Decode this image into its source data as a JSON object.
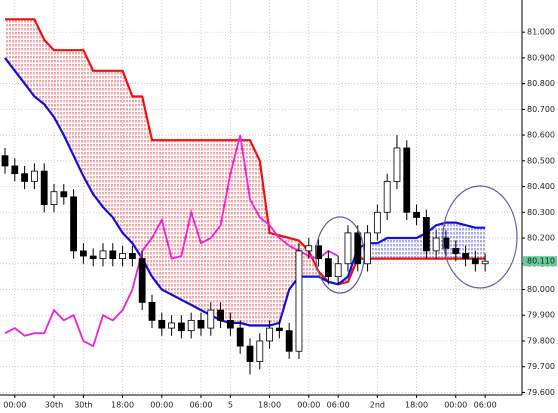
{
  "chart_data": {
    "type": "candlestick",
    "x": [
      0,
      1,
      2,
      3,
      4,
      5,
      6,
      7,
      8,
      9,
      10,
      11,
      12,
      13,
      14,
      15,
      16,
      17,
      18,
      19,
      20,
      21,
      22,
      23,
      24,
      25,
      26,
      27,
      28,
      29,
      30,
      31,
      32,
      33,
      34,
      35,
      36,
      37,
      38,
      39,
      40,
      41,
      42,
      43,
      44,
      45,
      46,
      47,
      48,
      49
    ],
    "open": [
      80.52,
      80.48,
      80.45,
      80.42,
      80.46,
      80.33,
      80.38,
      80.36,
      80.15,
      80.13,
      80.12,
      80.15,
      80.12,
      80.14,
      80.12,
      79.95,
      79.88,
      79.85,
      79.87,
      79.84,
      79.88,
      79.85,
      79.92,
      79.88,
      79.85,
      79.78,
      79.72,
      79.8,
      79.85,
      79.84,
      79.76,
      80.15,
      80.17,
      80.12,
      80.05,
      80.1,
      80.22,
      80.1,
      80.22,
      80.3,
      80.42,
      80.55,
      80.3,
      80.28,
      80.15,
      80.2,
      80.16,
      80.14,
      80.12,
      80.1
    ],
    "high": [
      80.55,
      80.51,
      80.48,
      80.49,
      80.49,
      80.41,
      80.41,
      80.39,
      80.18,
      80.16,
      80.18,
      80.18,
      80.17,
      80.17,
      80.15,
      79.98,
      79.91,
      79.9,
      79.9,
      79.91,
      79.91,
      79.95,
      79.95,
      79.91,
      79.88,
      79.81,
      79.83,
      79.88,
      79.88,
      79.87,
      80.18,
      80.2,
      80.2,
      80.15,
      80.13,
      80.25,
      80.25,
      80.25,
      80.33,
      80.45,
      80.6,
      80.58,
      80.33,
      80.31,
      80.23,
      80.23,
      80.19,
      80.17,
      80.15,
      80.14
    ],
    "low": [
      80.45,
      80.42,
      80.39,
      80.39,
      80.3,
      80.3,
      80.33,
      80.12,
      80.1,
      80.09,
      80.09,
      80.09,
      80.09,
      80.09,
      79.92,
      79.85,
      79.82,
      79.82,
      79.81,
      79.81,
      79.82,
      79.82,
      79.85,
      79.82,
      79.75,
      79.67,
      79.69,
      79.77,
      79.81,
      79.73,
      79.73,
      80.12,
      80.09,
      80.02,
      80.02,
      80.07,
      80.07,
      80.07,
      80.19,
      80.27,
      80.39,
      80.27,
      80.25,
      80.12,
      80.12,
      80.13,
      80.11,
      80.09,
      80.07,
      80.07
    ],
    "close": [
      80.48,
      80.45,
      80.42,
      80.46,
      80.33,
      80.38,
      80.36,
      80.15,
      80.13,
      80.12,
      80.15,
      80.12,
      80.14,
      80.12,
      79.95,
      79.88,
      79.85,
      79.87,
      79.84,
      79.88,
      79.85,
      79.92,
      79.88,
      79.85,
      79.78,
      79.72,
      79.8,
      79.85,
      79.84,
      79.76,
      80.15,
      80.17,
      80.12,
      80.05,
      80.1,
      80.22,
      80.1,
      80.22,
      80.3,
      80.42,
      80.55,
      80.3,
      80.28,
      80.15,
      80.2,
      80.16,
      80.14,
      80.12,
      80.1,
      80.11
    ],
    "up_color": "#ffffff",
    "down_color": "#000000",
    "series": [
      {
        "color": "#ee1111",
        "values": [
          81.05,
          81.05,
          81.05,
          81.05,
          80.97,
          80.93,
          80.93,
          80.93,
          80.93,
          80.85,
          80.85,
          80.85,
          80.85,
          80.75,
          80.75,
          80.58,
          80.58,
          80.58,
          80.58,
          80.58,
          80.58,
          80.58,
          80.58,
          80.58,
          80.58,
          80.58,
          80.5,
          80.22,
          80.21,
          80.2,
          80.19,
          80.15,
          80.07,
          80.03,
          80.02,
          80.03,
          80.12,
          80.12,
          80.12,
          80.12,
          80.12,
          80.12,
          80.12,
          80.12,
          80.12,
          80.12,
          80.12,
          80.12,
          80.12,
          80.12
        ]
      },
      {
        "color": "#1111dd",
        "values": [
          80.9,
          80.85,
          80.8,
          80.75,
          80.72,
          80.67,
          80.6,
          80.52,
          80.44,
          80.37,
          80.32,
          80.28,
          80.22,
          80.18,
          80.12,
          80.05,
          80.0,
          79.98,
          79.96,
          79.94,
          79.92,
          79.9,
          79.88,
          79.87,
          79.87,
          79.86,
          79.86,
          79.86,
          79.87,
          80.0,
          80.05,
          80.05,
          80.05,
          80.03,
          80.02,
          80.05,
          80.16,
          80.18,
          80.18,
          80.2,
          80.2,
          80.2,
          80.2,
          80.22,
          80.25,
          80.26,
          80.26,
          80.25,
          80.24,
          80.24
        ]
      },
      {
        "color": "#ee22dd",
        "values": [
          79.83,
          79.85,
          79.82,
          79.83,
          79.83,
          79.92,
          79.88,
          79.9,
          79.8,
          79.78,
          79.9,
          79.88,
          79.92,
          80.0,
          80.15,
          80.2,
          80.27,
          80.12,
          80.13,
          80.3,
          80.18,
          80.2,
          80.25,
          80.45,
          80.6,
          80.35,
          80.28,
          80.25,
          80.2,
          80.17,
          80.15,
          80.13,
          80.12,
          80.15,
          80.13,
          null,
          null,
          null,
          null,
          null,
          null,
          null,
          null,
          null,
          null,
          null,
          null,
          null,
          null,
          null
        ]
      }
    ],
    "xlim": [
      -0.51,
      52.76
    ],
    "ylim": [
      79.59,
      81.125
    ],
    "xticks": [
      {
        "value": 1,
        "label": "00:00"
      },
      {
        "value": 5,
        "label": "30th"
      },
      {
        "value": 8,
        "label": "30th"
      },
      {
        "value": 12,
        "label": "18:00"
      },
      {
        "value": 16,
        "label": "00:00"
      },
      {
        "value": 20,
        "label": "06:00"
      },
      {
        "value": 23,
        "label": "5"
      },
      {
        "value": 27,
        "label": "18:00"
      },
      {
        "value": 31,
        "label": "00:00"
      },
      {
        "value": 34,
        "label": "06:00"
      },
      {
        "value": 38,
        "label": "2nd"
      },
      {
        "value": 42,
        "label": "18:00"
      },
      {
        "value": 46,
        "label": "00:00"
      },
      {
        "value": 49,
        "label": "06:00"
      }
    ],
    "yticks": [
      {
        "value": 79.6,
        "label": "79.600"
      },
      {
        "value": 79.7,
        "label": "79.700"
      },
      {
        "value": 79.8,
        "label": "79.800"
      },
      {
        "value": 79.9,
        "label": "79.900"
      },
      {
        "value": 80.0,
        "label": "80.000"
      },
      {
        "value": 80.1,
        "label": "80.100"
      },
      {
        "value": 80.2,
        "label": "80.200"
      },
      {
        "value": 80.3,
        "label": "80.300"
      },
      {
        "value": 80.4,
        "label": "80.400"
      },
      {
        "value": 80.5,
        "label": "80.500"
      },
      {
        "value": 80.6,
        "label": "80.600"
      },
      {
        "value": 80.7,
        "label": "80.700"
      },
      {
        "value": 80.8,
        "label": "80.800"
      },
      {
        "value": 80.9,
        "label": "80.900"
      },
      {
        "value": 81.0,
        "label": "81.000"
      }
    ],
    "grid": true,
    "last_price": {
      "value": 80.11,
      "label": "80.110"
    }
  }
}
